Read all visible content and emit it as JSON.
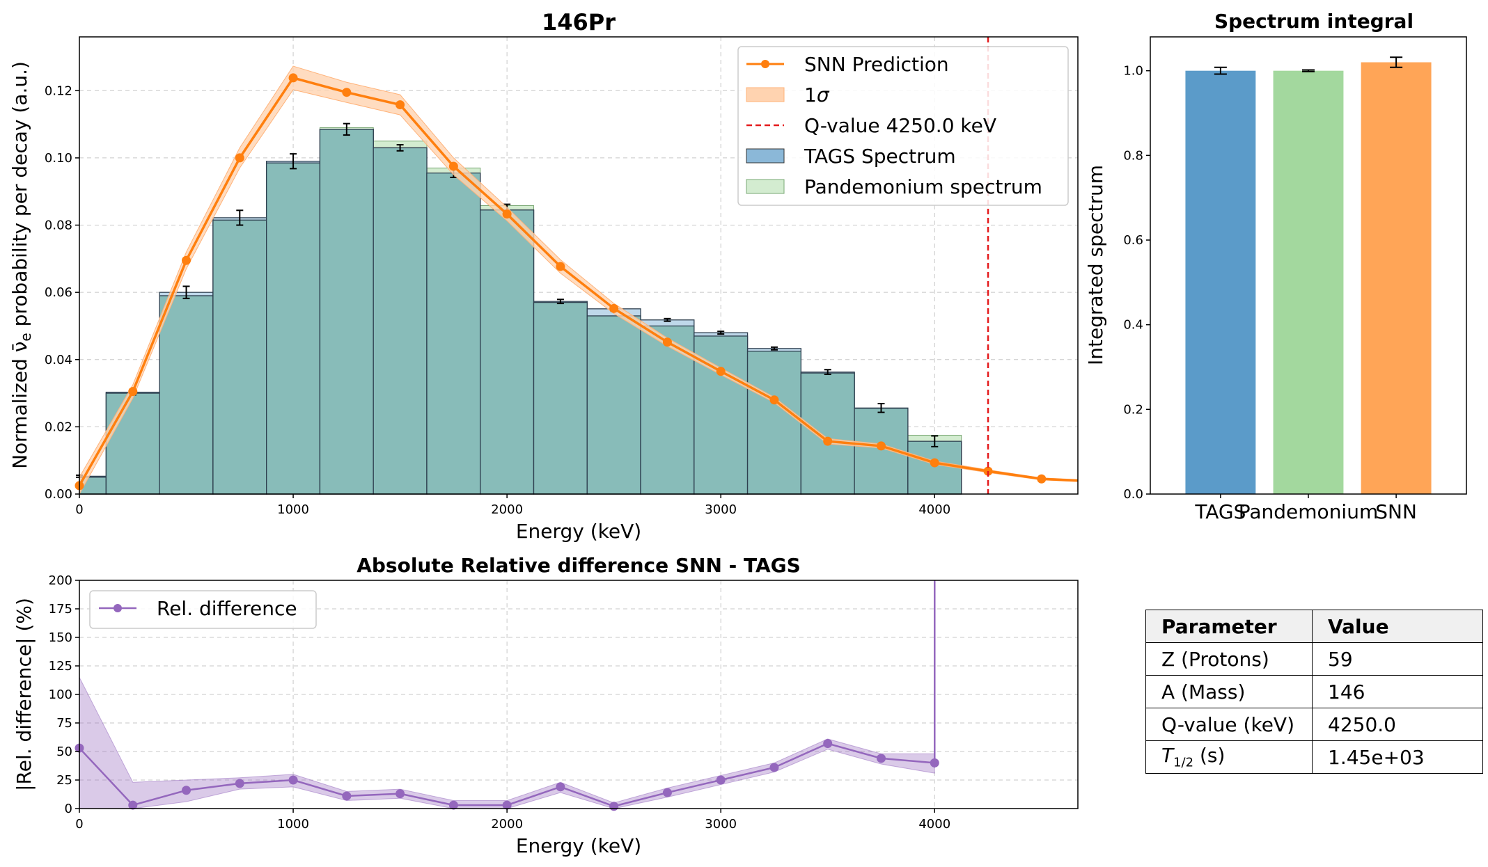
{
  "chart_data": [
    {
      "type": "bar",
      "title": "146Pr",
      "xlabel": "Energy (keV)",
      "ylabel": "Normalized ν̅e probability per decay (a.u.)",
      "xlim": [
        0,
        4670
      ],
      "ylim": [
        0,
        0.136
      ],
      "x_ticks": [
        0,
        1000,
        2000,
        3000,
        4000
      ],
      "y_ticks": [
        0.0,
        0.02,
        0.04,
        0.06,
        0.08,
        0.1,
        0.12
      ],
      "grid": true,
      "legend_position": "top-right",
      "legend": [
        "SNN Prediction",
        "1σ",
        "Q-value 4250.0 keV",
        "TAGS Spectrum",
        "Pandemonium spectrum"
      ],
      "bin_edges": [
        0,
        125,
        375,
        625,
        875,
        1125,
        1375,
        1625,
        1875,
        2125,
        2375,
        2625,
        2875,
        3125,
        3375,
        3625,
        3875,
        4125
      ],
      "bin_centers": [
        0,
        250,
        500,
        750,
        1000,
        1250,
        1500,
        1750,
        2000,
        2250,
        2500,
        2750,
        3000,
        3250,
        3500,
        3750,
        4000
      ],
      "tags_values": [
        0.0053,
        0.0303,
        0.06,
        0.0822,
        0.099,
        0.1085,
        0.103,
        0.0955,
        0.0845,
        0.0573,
        0.0551,
        0.0518,
        0.048,
        0.0433,
        0.0363,
        0.0256,
        0.0157
      ],
      "tags_errors": [
        0.0003,
        0.0008,
        0.0018,
        0.0022,
        0.0022,
        0.0017,
        0.0009,
        0.0013,
        0.0017,
        0.0006,
        0.0007,
        0.0004,
        0.0004,
        0.0004,
        0.0007,
        0.0013,
        0.0016
      ],
      "pandemonium_values": [
        0.005,
        0.03,
        0.059,
        0.0815,
        0.0985,
        0.109,
        0.105,
        0.097,
        0.0858,
        0.057,
        0.053,
        0.05,
        0.047,
        0.0425,
        0.036,
        0.0255,
        0.0175
      ],
      "series": [
        {
          "name": "SNN Prediction",
          "x": [
            0,
            250,
            500,
            750,
            1000,
            1250,
            1500,
            1750,
            2000,
            2250,
            2500,
            2750,
            3000,
            3250,
            3500,
            3750,
            4000,
            4250,
            4500,
            4670
          ],
          "y": [
            0.0025,
            0.0305,
            0.0695,
            0.1,
            0.1238,
            0.1195,
            0.1158,
            0.0975,
            0.0833,
            0.0677,
            0.0552,
            0.0452,
            0.0365,
            0.028,
            0.0157,
            0.0143,
            0.0093,
            0.0068,
            0.0045,
            0.004
          ],
          "sigma": [
            0.0025,
            0.002,
            0.0025,
            0.003,
            0.0035,
            0.003,
            0.003,
            0.0025,
            0.002,
            0.002,
            0.0015,
            0.0012,
            0.001,
            0.0008,
            0.0008,
            0.0006,
            0.0005,
            0.0004,
            0.0003,
            0.0003
          ]
        }
      ],
      "q_value": 4250.0
    },
    {
      "type": "bar",
      "title": "Spectrum integral",
      "ylabel": "Integrated spectrum",
      "categories": [
        "TAGS",
        "Pandemonium",
        "SNN"
      ],
      "values": [
        1.0,
        1.0,
        1.02
      ],
      "errors": [
        0.008,
        0.002,
        0.012
      ],
      "ylim": [
        0,
        1.08
      ],
      "y_ticks": [
        0.0,
        0.2,
        0.4,
        0.6,
        0.8,
        1.0
      ],
      "colors": [
        "#5b9bc9",
        "#a3d89e",
        "#ffa557"
      ]
    },
    {
      "type": "line",
      "title": "Absolute Relative difference SNN - TAGS",
      "xlabel": "Energy (keV)",
      "ylabel": "|Rel. difference| (%)",
      "xlim": [
        0,
        4670
      ],
      "ylim": [
        0,
        200
      ],
      "x_ticks": [
        0,
        1000,
        2000,
        3000,
        4000
      ],
      "y_ticks": [
        0,
        25,
        50,
        75,
        100,
        125,
        150,
        175,
        200
      ],
      "grid": true,
      "legend_position": "top-left",
      "series": [
        {
          "name": "Rel. difference",
          "x": [
            0,
            250,
            500,
            750,
            1000,
            1250,
            1500,
            1750,
            2000,
            2250,
            2500,
            2750,
            3000,
            3250,
            3500,
            3750,
            4000
          ],
          "y": [
            53,
            3,
            16,
            22,
            25,
            11,
            13,
            3,
            3,
            19,
            2,
            14,
            25,
            36,
            57,
            44,
            40
          ],
          "lower": [
            0,
            0,
            6,
            17,
            19,
            7,
            9,
            0,
            0,
            14,
            0,
            10,
            21,
            32,
            52,
            39,
            31
          ],
          "upper": [
            115,
            23,
            25,
            27,
            30,
            15,
            17,
            7,
            7,
            23,
            5,
            18,
            29,
            40,
            61,
            48,
            48
          ]
        }
      ],
      "spike_x": 4000
    }
  ],
  "table": {
    "headers": [
      "Parameter",
      "Value"
    ],
    "rows": [
      [
        "Z (Protons)",
        "59"
      ],
      [
        "A (Mass)",
        "146"
      ],
      [
        "Q-value (keV)",
        "4250.0"
      ],
      [
        "T1/2 (s)",
        "1.45e+03"
      ]
    ]
  },
  "colors": {
    "snn": "#ff7f0e",
    "sigma_fill": "#ffd3b0",
    "qline": "#e41a1c",
    "tags_fill": "#8bb8d8",
    "pandemonium_fill": "#d3ecd0",
    "overlap": "#88bcb9",
    "reldiff": "#9467bd"
  }
}
